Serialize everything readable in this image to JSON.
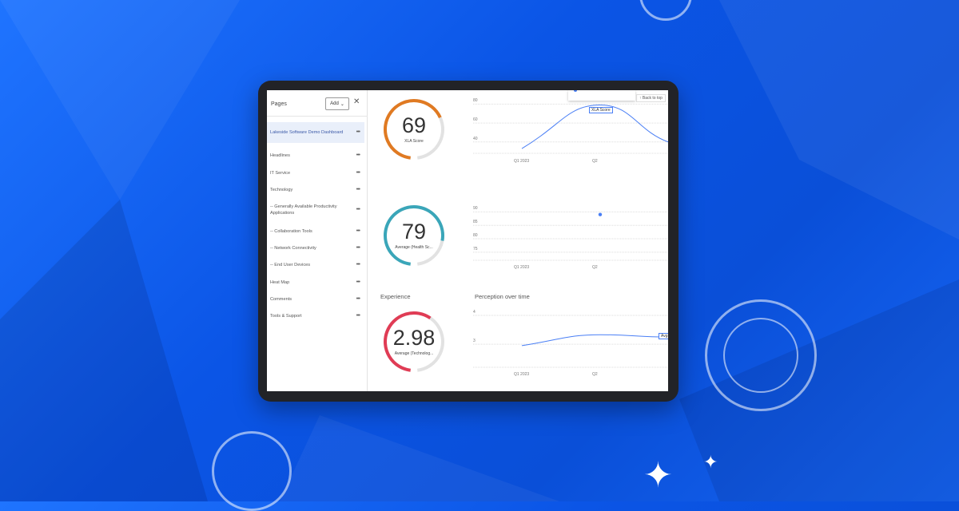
{
  "sidebar": {
    "title": "Pages",
    "add_label": "Add",
    "items": [
      {
        "label": "Lakeside Software Demo Dashboard",
        "active": true
      },
      {
        "label": "Headlines"
      },
      {
        "label": "IT Service"
      },
      {
        "label": "Technology"
      },
      {
        "label": "-- Generally Available Productivity Applications"
      },
      {
        "label": "-- Collaboration Tools"
      },
      {
        "label": "-- Network Connectivity"
      },
      {
        "label": "-- End User Devices"
      },
      {
        "label": "Heat Map"
      },
      {
        "label": "Comments"
      },
      {
        "label": "Tools & Support"
      }
    ]
  },
  "main": {
    "back_to_top": "↑ Back to top",
    "experience_label": "Experience",
    "gauges": [
      {
        "value": "69",
        "label": "XLA Score",
        "color": "#e07a22",
        "fraction": 0.69
      },
      {
        "value": "79",
        "label": "Average (Health Sc...",
        "color": "#3aa6b9",
        "fraction": 0.79
      },
      {
        "value": "2.98",
        "label": "Average (Technolog...",
        "color": "#e03c55",
        "fraction": 0.6
      }
    ]
  },
  "chart_data": [
    {
      "type": "line",
      "categories": [
        "Q1 2023",
        "Q2"
      ],
      "values": [
        33,
        79
      ],
      "yticks": [
        40,
        60,
        80
      ],
      "ylim": [
        28,
        82
      ],
      "tooltip": "XLA Score",
      "grid": true
    },
    {
      "type": "scatter",
      "categories": [
        "Q1 2023",
        "Q2"
      ],
      "values": [
        null,
        89
      ],
      "yticks": [
        75,
        80,
        85,
        90
      ],
      "ylim": [
        72,
        91
      ],
      "grid": true
    },
    {
      "type": "line",
      "title": "Perception over time",
      "categories": [
        "Q1 2023",
        "Q2"
      ],
      "values": [
        2.95,
        3.33
      ],
      "yticks": [
        3,
        4
      ],
      "ylim": [
        2.2,
        4.0
      ],
      "tooltip": "Avg",
      "grid": true
    }
  ],
  "colors": {
    "line": "#4a7ff5",
    "background": "#0b55e6"
  }
}
